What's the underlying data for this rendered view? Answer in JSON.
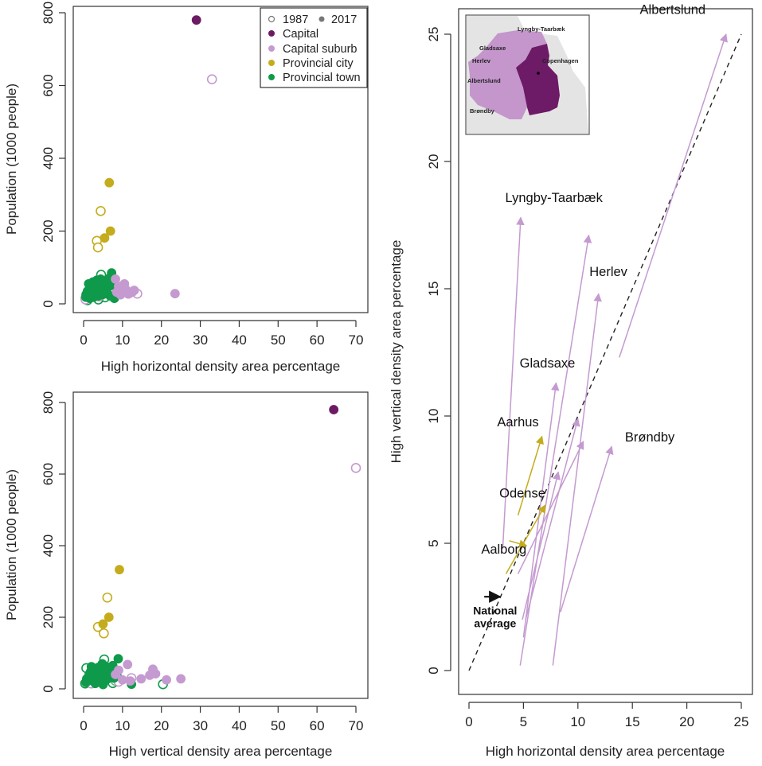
{
  "colors": {
    "capital": "#6b1a63",
    "capital_suburb": "#c49ad0",
    "provincial_city": "#c4ac1c",
    "provincial_town": "#0e9a4a",
    "national": "#111111",
    "map_capital": "#6d1a67",
    "map_suburb": "#c496cc",
    "map_land": "#e4e4e4"
  },
  "chart_data": [
    {
      "id": "top-left",
      "type": "scatter",
      "title": "",
      "xlabel": "High horizontal density area percentage",
      "ylabel": "Population (1000 people)",
      "xlim": [
        0,
        70
      ],
      "ylim": [
        0,
        800
      ],
      "xticks": [
        "0",
        "10",
        "20",
        "30",
        "40",
        "50",
        "60",
        "70"
      ],
      "xtick_values": [
        0,
        10,
        20,
        30,
        40,
        50,
        60,
        70
      ],
      "yticks": [
        "0",
        "200",
        "400",
        "600",
        "800"
      ],
      "ytick_values": [
        0,
        200,
        400,
        600,
        800
      ],
      "grid": false,
      "legend": {
        "placement": "top-right",
        "year_entries": [
          {
            "label": "1987",
            "marker": "open"
          },
          {
            "label": "2017",
            "marker": "filled"
          }
        ],
        "group_entries": [
          {
            "label": "Capital",
            "group": "capital"
          },
          {
            "label": "Capital suburb",
            "group": "capital_suburb"
          },
          {
            "label": "Provincial city",
            "group": "provincial_city"
          },
          {
            "label": "Provincial town",
            "group": "provincial_town"
          }
        ]
      },
      "series": [
        {
          "name": "Capital 2017",
          "group": "capital",
          "year": 2017,
          "points": [
            [
              29,
              780
            ]
          ]
        },
        {
          "name": "Capital 1987",
          "group": "capital_suburb",
          "year": 1987,
          "points": [
            [
              33,
              617
            ]
          ]
        },
        {
          "name": "Provincial city 2017",
          "group": "provincial_city",
          "year": 2017,
          "points": [
            [
              6.6,
              333
            ],
            [
              6.9,
              200
            ],
            [
              5.4,
              181
            ]
          ]
        },
        {
          "name": "Provincial city 1987",
          "group": "provincial_city",
          "year": 1987,
          "points": [
            [
              4.4,
              255
            ],
            [
              3.4,
              173
            ],
            [
              3.7,
              155
            ]
          ]
        },
        {
          "name": "Capital suburb 2017",
          "group": "capital_suburb",
          "year": 2017,
          "points": [
            [
              23.5,
              28
            ],
            [
              8.2,
              68
            ],
            [
              9.0,
              48
            ],
            [
              10.5,
              55
            ],
            [
              11.0,
              38
            ],
            [
              12.0,
              30
            ],
            [
              13.0,
              37
            ],
            [
              9.5,
              25
            ],
            [
              10.0,
              35
            ],
            [
              8.5,
              32
            ],
            [
              11.5,
              27
            ],
            [
              12.5,
              32
            ]
          ]
        },
        {
          "name": "Capital suburb 1987",
          "group": "capital_suburb",
          "year": 1987,
          "points": [
            [
              13.8,
              28
            ],
            [
              8.0,
              22
            ],
            [
              7.5,
              40
            ],
            [
              6.0,
              30
            ],
            [
              5.0,
              45
            ],
            [
              4.0,
              20
            ],
            [
              0.5,
              12
            ]
          ]
        },
        {
          "name": "Provincial town 2017",
          "group": "provincial_town",
          "year": 2017,
          "points": [
            [
              7.2,
              85
            ],
            [
              6.5,
              70
            ],
            [
              5.0,
              62
            ],
            [
              4.0,
              58
            ],
            [
              3.0,
              55
            ],
            [
              2.5,
              50
            ],
            [
              2.0,
              45
            ],
            [
              1.5,
              40
            ],
            [
              1.0,
              35
            ],
            [
              0.8,
              28
            ],
            [
              1.2,
              22
            ],
            [
              2.2,
              25
            ],
            [
              3.2,
              30
            ],
            [
              4.2,
              35
            ],
            [
              5.2,
              40
            ],
            [
              6.2,
              45
            ],
            [
              7.0,
              50
            ],
            [
              7.9,
              15
            ],
            [
              6.8,
              22
            ],
            [
              5.6,
              28
            ],
            [
              3.6,
              42
            ],
            [
              2.8,
              38
            ],
            [
              1.8,
              30
            ],
            [
              2.4,
              60
            ],
            [
              3.4,
              65
            ],
            [
              4.6,
              52
            ],
            [
              0.6,
              18
            ],
            [
              1.6,
              15
            ],
            [
              2.6,
              18
            ],
            [
              3.8,
              22
            ],
            [
              4.8,
              25
            ],
            [
              5.8,
              32
            ],
            [
              6.0,
              58
            ],
            [
              4.4,
              68
            ],
            [
              1.3,
              55
            ]
          ]
        },
        {
          "name": "Provincial town 1987",
          "group": "provincial_town",
          "year": 1987,
          "points": [
            [
              4.5,
              80
            ],
            [
              3.5,
              60
            ],
            [
              2.5,
              48
            ],
            [
              1.5,
              38
            ],
            [
              0.7,
              25
            ],
            [
              0.5,
              15
            ],
            [
              1.0,
              10
            ],
            [
              2.0,
              20
            ],
            [
              3.0,
              28
            ],
            [
              4.0,
              35
            ],
            [
              5.0,
              55
            ],
            [
              6.0,
              42
            ],
            [
              5.5,
              18
            ],
            [
              3.8,
              12
            ],
            [
              2.6,
              32
            ],
            [
              1.8,
              52
            ]
          ]
        }
      ]
    },
    {
      "id": "bottom-left",
      "type": "scatter",
      "title": "",
      "xlabel": "High vertical density area percentage",
      "ylabel": "Population (1000 people)",
      "xlim": [
        0,
        70
      ],
      "ylim": [
        0,
        800
      ],
      "xticks": [
        "0",
        "10",
        "20",
        "30",
        "40",
        "50",
        "60",
        "70"
      ],
      "xtick_values": [
        0,
        10,
        20,
        30,
        40,
        50,
        60,
        70
      ],
      "yticks": [
        "0",
        "200",
        "400",
        "600",
        "800"
      ],
      "ytick_values": [
        0,
        200,
        400,
        600,
        800
      ],
      "grid": false,
      "series": [
        {
          "name": "Capital 2017",
          "group": "capital",
          "year": 2017,
          "points": [
            [
              64.3,
              780
            ]
          ]
        },
        {
          "name": "Capital 1987",
          "group": "capital_suburb",
          "year": 1987,
          "points": [
            [
              70,
              617
            ]
          ]
        },
        {
          "name": "Provincial city 2017",
          "group": "provincial_city",
          "year": 2017,
          "points": [
            [
              9.2,
              333
            ],
            [
              6.5,
              200
            ],
            [
              5.0,
              181
            ]
          ]
        },
        {
          "name": "Provincial city 1987",
          "group": "provincial_city",
          "year": 1987,
          "points": [
            [
              6.1,
              255
            ],
            [
              3.7,
              173
            ],
            [
              5.2,
              155
            ]
          ]
        },
        {
          "name": "Capital suburb 2017",
          "group": "capital_suburb",
          "year": 2017,
          "points": [
            [
              25,
              28
            ],
            [
              21.3,
              25
            ],
            [
              18.5,
              42
            ],
            [
              17.8,
              55
            ],
            [
              17.0,
              38
            ],
            [
              14.8,
              28
            ],
            [
              11.3,
              68
            ],
            [
              9.0,
              52
            ],
            [
              10.0,
              25
            ],
            [
              8.2,
              40
            ],
            [
              12.0,
              22
            ]
          ]
        },
        {
          "name": "Capital suburb 1987",
          "group": "capital_suburb",
          "year": 1987,
          "points": [
            [
              12.3,
              30
            ],
            [
              9.0,
              20
            ],
            [
              7.0,
              45
            ],
            [
              5.0,
              35
            ],
            [
              2.0,
              15
            ]
          ]
        },
        {
          "name": "Provincial town 2017",
          "group": "provincial_town",
          "year": 2017,
          "points": [
            [
              8.9,
              84
            ],
            [
              12.3,
              13
            ],
            [
              7.5,
              65
            ],
            [
              6.5,
              60
            ],
            [
              5.5,
              55
            ],
            [
              4.5,
              50
            ],
            [
              3.5,
              45
            ],
            [
              2.5,
              40
            ],
            [
              1.5,
              35
            ],
            [
              0.8,
              28
            ],
            [
              1.2,
              22
            ],
            [
              2.2,
              25
            ],
            [
              3.2,
              30
            ],
            [
              4.2,
              35
            ],
            [
              5.2,
              20
            ],
            [
              6.2,
              28
            ],
            [
              7.0,
              38
            ],
            [
              8.0,
              42
            ],
            [
              5.0,
              12
            ],
            [
              3.8,
              60
            ],
            [
              2.8,
              55
            ],
            [
              1.8,
              48
            ],
            [
              0.6,
              18
            ],
            [
              4.8,
              70
            ],
            [
              6.0,
              45
            ],
            [
              7.8,
              30
            ],
            [
              3.0,
              15
            ],
            [
              2.0,
              62
            ]
          ]
        },
        {
          "name": "Provincial town 1987",
          "group": "provincial_town",
          "year": 1987,
          "points": [
            [
              5.3,
              82
            ],
            [
              20.4,
              13
            ],
            [
              8.2,
              22
            ],
            [
              8.8,
              30
            ],
            [
              0.7,
              58
            ],
            [
              1.5,
              40
            ],
            [
              2.5,
              30
            ],
            [
              3.5,
              25
            ],
            [
              4.5,
              35
            ],
            [
              0.4,
              15
            ],
            [
              6.0,
              48
            ],
            [
              7.5,
              16
            ]
          ]
        }
      ]
    },
    {
      "id": "right",
      "type": "arrows",
      "title": "",
      "xlabel": "High horizontal density area percentage",
      "ylabel": "High vertical density area percentage",
      "xlim": [
        0,
        25
      ],
      "ylim": [
        0,
        25
      ],
      "xticks": [
        "0",
        "5",
        "10",
        "15",
        "20",
        "25"
      ],
      "xtick_values": [
        0,
        5,
        10,
        15,
        20,
        25
      ],
      "yticks": [
        "0",
        "5",
        "10",
        "15",
        "20",
        "25"
      ],
      "ytick_values": [
        0,
        5,
        10,
        15,
        20,
        25
      ],
      "grid": false,
      "reference_line": {
        "style": "dashed",
        "from": [
          0,
          0
        ],
        "to": [
          25,
          25
        ]
      },
      "arrows": [
        {
          "name": "Albertslund",
          "group": "capital_suburb",
          "from": [
            13.8,
            12.3
          ],
          "to": [
            23.6,
            25.0
          ],
          "label": "Albertslund",
          "label_at": [
            18.7,
            25.8
          ]
        },
        {
          "name": "Lyngby-Taarbæk",
          "group": "capital_suburb",
          "from": [
            3.1,
            4.8
          ],
          "to": [
            4.75,
            17.8
          ],
          "label": "Lyngby-Taarbæk",
          "label_at": [
            7.8,
            18.4
          ]
        },
        {
          "name": "unlabeled-1",
          "group": "capital_suburb",
          "from": [
            4.7,
            0.2
          ],
          "to": [
            11.0,
            17.1
          ],
          "label": ""
        },
        {
          "name": "Herlev",
          "group": "capital_suburb",
          "from": [
            7.7,
            0.2
          ],
          "to": [
            11.9,
            14.8
          ],
          "label": "Herlev",
          "label_at": [
            12.8,
            15.5
          ]
        },
        {
          "name": "Gladsaxe",
          "group": "capital_suburb",
          "from": [
            5.0,
            1.3
          ],
          "to": [
            8.0,
            11.3
          ],
          "label": "Gladsaxe",
          "label_at": [
            7.2,
            11.9
          ]
        },
        {
          "name": "unlabeled-2",
          "group": "capital_suburb",
          "from": [
            5.2,
            2.0
          ],
          "to": [
            10.0,
            9.9
          ],
          "label": ""
        },
        {
          "name": "unlabeled-3",
          "group": "capital_suburb",
          "from": [
            4.5,
            3.8
          ],
          "to": [
            10.5,
            9.0
          ],
          "label": ""
        },
        {
          "name": "unlabeled-4",
          "group": "capital_suburb",
          "from": [
            4.9,
            2.0
          ],
          "to": [
            8.2,
            7.8
          ],
          "label": ""
        },
        {
          "name": "Brøndby",
          "group": "capital_suburb",
          "from": [
            8.4,
            2.3
          ],
          "to": [
            13.1,
            8.8
          ],
          "label": "Brøndby",
          "label_at": [
            16.6,
            9.0
          ]
        },
        {
          "name": "Aarhus",
          "group": "provincial_city",
          "from": [
            4.5,
            6.1
          ],
          "to": [
            6.7,
            9.2
          ],
          "label": "Aarhus",
          "label_at": [
            4.5,
            9.6
          ]
        },
        {
          "name": "Odense",
          "group": "provincial_city",
          "from": [
            3.4,
            3.8
          ],
          "to": [
            7.0,
            6.5
          ],
          "label": "Odense",
          "label_at": [
            4.9,
            6.8
          ]
        },
        {
          "name": "Aalborg",
          "group": "provincial_city",
          "from": [
            3.7,
            5.1
          ],
          "to": [
            5.3,
            4.9
          ],
          "label": "Aalborg",
          "label_at": [
            3.2,
            4.6
          ]
        },
        {
          "name": "National average",
          "group": "national",
          "from": [
            1.4,
            2.9
          ],
          "to": [
            2.85,
            2.9
          ],
          "label": "National\naverage",
          "label_at": [
            2.4,
            2.2
          ]
        }
      ]
    }
  ],
  "inset_map": {
    "labels": [
      "Lyngby-Taarbæk",
      "Gladsaxe",
      "Herlev",
      "Copenhagen",
      "Albertslund",
      "Brøndby"
    ]
  },
  "labels": {
    "national_line1": "National",
    "national_line2": "average"
  }
}
